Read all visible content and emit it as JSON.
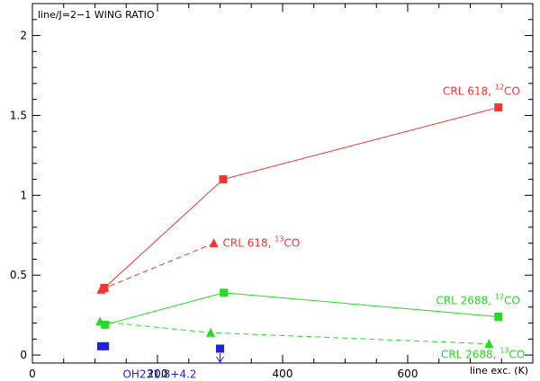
{
  "chart_data": {
    "type": "scatter",
    "title": "line/J=2−1 WING RATIO",
    "xlabel": "line exc. (K)",
    "ylabel": "",
    "xlim": [
      0,
      800
    ],
    "ylim": [
      -0.05,
      2.2
    ],
    "x_ticks": [
      "0",
      "200",
      "400",
      "600"
    ],
    "y_ticks": [
      "0",
      "0.5",
      "1",
      "1.5",
      "2"
    ],
    "x_tick_values": [
      0,
      200,
      400,
      600
    ],
    "y_tick_values": [
      0,
      0.5,
      1,
      1.5,
      2
    ],
    "grid": false,
    "series": [
      {
        "label_main": "CRL 618, ",
        "label_sup": "12",
        "label_tail": "CO",
        "color": "#ff3030",
        "marker": "square",
        "line": "solid",
        "x": [
          115,
          305,
          745
        ],
        "y": [
          0.42,
          1.1,
          1.55
        ],
        "label_pos": "top-right"
      },
      {
        "label_main": "CRL 618, ",
        "label_sup": "13",
        "label_tail": "CO",
        "color": "#ff3030",
        "marker": "triangle",
        "line": "dashed",
        "x": [
          110,
          290
        ],
        "y": [
          0.41,
          0.7
        ],
        "label_pos": "right"
      },
      {
        "label_main": "CRL 2688, ",
        "label_sup": "12",
        "label_tail": "CO",
        "color": "#22dd22",
        "marker": "square",
        "line": "solid",
        "x": [
          116,
          306,
          745
        ],
        "y": [
          0.19,
          0.39,
          0.24
        ],
        "label_pos": "top-right"
      },
      {
        "label_main": "CRL 2688, ",
        "label_sup": "13",
        "label_tail": "CO",
        "color": "#22dd22",
        "marker": "triangle",
        "line": "dashed",
        "x": [
          108,
          285,
          730
        ],
        "y": [
          0.21,
          0.14,
          0.07
        ],
        "label_pos": "bottom-right"
      },
      {
        "label_main": "OH231.8+4.2",
        "label_sup": "",
        "label_tail": "",
        "color": "#2020e0",
        "marker": "square",
        "line": "none",
        "x": [
          110,
          116,
          300
        ],
        "y": [
          0.055,
          0.055,
          0.04
        ],
        "upper_limit_x": 300,
        "label_pos": "bottom-left"
      }
    ]
  }
}
